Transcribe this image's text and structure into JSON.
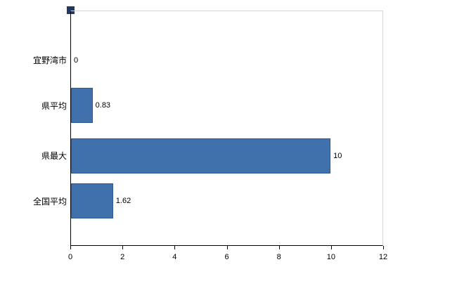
{
  "chart_data": {
    "type": "bar",
    "orientation": "horizontal",
    "categories": [
      "宜野湾市",
      "県平均",
      "県最大",
      "全国平均"
    ],
    "values": [
      0,
      0.83,
      10,
      1.62
    ],
    "value_labels": [
      "0",
      "0.83",
      "10",
      "1.62"
    ],
    "x_ticks": [
      "0",
      "2",
      "4",
      "6",
      "8",
      "10",
      "12"
    ],
    "xlim": [
      0,
      12
    ],
    "grid": false,
    "legend_position": "top-left",
    "bar_color": "#4071ac",
    "bar_border_color": "#2e5a8f",
    "legend_marker_color": "#1f3864",
    "title": "",
    "xlabel": "",
    "ylabel": ""
  }
}
